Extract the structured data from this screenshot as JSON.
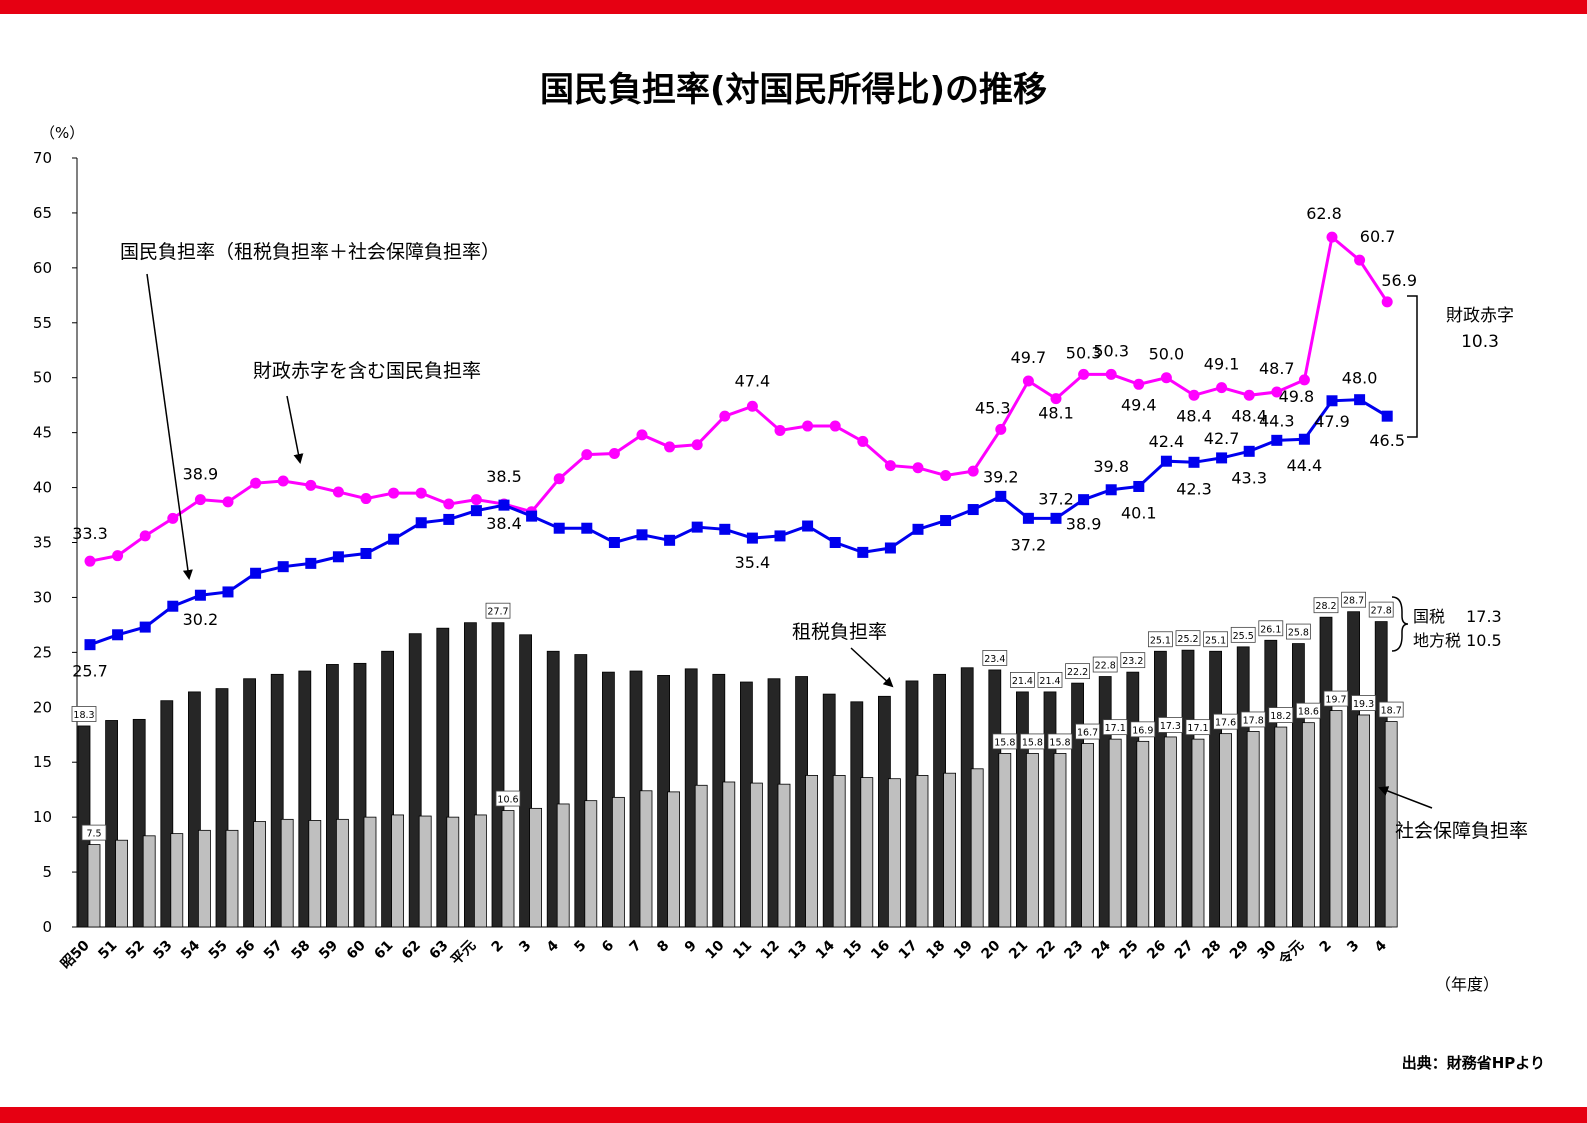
{
  "title": "国民負担率(対国民所得比)の推移",
  "source": "出典：財務省HPより",
  "colors": {
    "accent_bar": "#e60012",
    "tax_bar": "#262626",
    "social_bar": "#bfbfbf",
    "burden_line": "#0000ee",
    "deficit_line": "#ff00ff"
  },
  "chart_data": {
    "type": "bar",
    "y_unit": "（%）",
    "x_unit": "（年度）",
    "ylim": [
      0,
      70
    ],
    "yticks": [
      0,
      5,
      10,
      15,
      20,
      25,
      30,
      35,
      40,
      45,
      50,
      55,
      60,
      65,
      70
    ],
    "categories": [
      "昭50",
      "51",
      "52",
      "53",
      "54",
      "55",
      "56",
      "57",
      "58",
      "59",
      "60",
      "61",
      "62",
      "63",
      "平元",
      "2",
      "3",
      "4",
      "5",
      "6",
      "7",
      "8",
      "9",
      "10",
      "11",
      "12",
      "13",
      "14",
      "15",
      "16",
      "17",
      "18",
      "19",
      "20",
      "21",
      "22",
      "23",
      "24",
      "25",
      "26",
      "27",
      "28",
      "29",
      "30",
      "令元",
      "2",
      "3",
      "4"
    ],
    "series": [
      {
        "name": "租税負担率",
        "kind": "bar",
        "values": [
          18.3,
          18.8,
          18.9,
          20.6,
          21.4,
          21.7,
          22.6,
          23.0,
          23.3,
          23.9,
          24.0,
          25.1,
          26.7,
          27.2,
          27.7,
          27.7,
          26.6,
          25.1,
          24.8,
          23.2,
          23.3,
          22.9,
          23.5,
          23.0,
          22.3,
          22.6,
          22.8,
          21.2,
          20.5,
          21.0,
          22.4,
          23.0,
          23.6,
          23.4,
          21.4,
          21.4,
          22.2,
          22.8,
          23.2,
          25.1,
          25.2,
          25.1,
          25.5,
          26.1,
          25.8,
          28.2,
          28.7,
          27.8
        ]
      },
      {
        "name": "社会保障負担率",
        "kind": "bar",
        "values": [
          7.5,
          7.9,
          8.3,
          8.5,
          8.8,
          8.8,
          9.6,
          9.8,
          9.7,
          9.8,
          10.0,
          10.2,
          10.1,
          10.0,
          10.2,
          10.6,
          10.8,
          11.2,
          11.5,
          11.8,
          12.4,
          12.3,
          12.9,
          13.2,
          13.1,
          13.0,
          13.8,
          13.8,
          13.6,
          13.5,
          13.8,
          14.0,
          14.4,
          15.8,
          15.8,
          15.8,
          16.7,
          17.1,
          16.9,
          17.3,
          17.1,
          17.6,
          17.8,
          18.2,
          18.6,
          19.7,
          19.3,
          18.7
        ]
      },
      {
        "name": "国民負担率（租税負担率＋社会保障負担率）",
        "kind": "line",
        "values": [
          25.7,
          26.6,
          27.3,
          29.2,
          30.2,
          30.5,
          32.2,
          32.8,
          33.1,
          33.7,
          34.0,
          35.3,
          36.8,
          37.1,
          37.9,
          38.4,
          37.4,
          36.3,
          36.3,
          35.0,
          35.7,
          35.2,
          36.4,
          36.2,
          35.4,
          35.6,
          36.5,
          35.0,
          34.1,
          34.5,
          36.2,
          37.0,
          38.0,
          39.2,
          37.2,
          37.2,
          38.9,
          39.8,
          40.1,
          42.4,
          42.3,
          42.7,
          43.3,
          44.3,
          44.4,
          47.9,
          48.0,
          46.5
        ]
      },
      {
        "name": "財政赤字を含む国民負担率",
        "kind": "line",
        "values": [
          33.3,
          33.8,
          35.6,
          37.2,
          38.9,
          38.7,
          40.4,
          40.6,
          40.2,
          39.6,
          39.0,
          39.5,
          39.5,
          38.5,
          38.9,
          38.5,
          37.8,
          40.8,
          43.0,
          43.1,
          44.8,
          43.7,
          43.9,
          46.5,
          47.4,
          45.2,
          45.6,
          45.6,
          44.2,
          42.0,
          41.8,
          41.1,
          41.5,
          45.3,
          49.7,
          48.1,
          50.3,
          50.3,
          49.4,
          50.0,
          48.4,
          49.1,
          48.4,
          48.7,
          49.8,
          62.8,
          60.7,
          56.9
        ]
      }
    ],
    "bar_labels": {
      "tax_idx": [
        0,
        15,
        33,
        34,
        35,
        36,
        37,
        38,
        39,
        40,
        41,
        42,
        43,
        44,
        45,
        46,
        47
      ],
      "social_idx": [
        0,
        15,
        33,
        34,
        35,
        36,
        37,
        38,
        39,
        40,
        41,
        42,
        43,
        44,
        45,
        46,
        47
      ]
    },
    "line_labels": {
      "burden": [
        {
          "i": 0,
          "text": "25.7"
        },
        {
          "i": 4,
          "text": "30.2"
        },
        {
          "i": 15,
          "text": "38.4"
        },
        {
          "i": 24,
          "text": "35.4"
        },
        {
          "i": 33,
          "text": "39.2"
        },
        {
          "i": 34,
          "text": "37.2"
        },
        {
          "i": 35,
          "text": "37.2"
        },
        {
          "i": 36,
          "text": "38.9"
        },
        {
          "i": 37,
          "text": "39.8"
        },
        {
          "i": 38,
          "text": "40.1"
        },
        {
          "i": 39,
          "text": "42.4"
        },
        {
          "i": 40,
          "text": "42.3"
        },
        {
          "i": 41,
          "text": "42.7"
        },
        {
          "i": 42,
          "text": "43.3"
        },
        {
          "i": 43,
          "text": "44.3"
        },
        {
          "i": 44,
          "text": "44.4"
        },
        {
          "i": 45,
          "text": "47.9"
        },
        {
          "i": 46,
          "text": "48.0"
        },
        {
          "i": 47,
          "text": "46.5"
        }
      ],
      "deficit": [
        {
          "i": 0,
          "text": "33.3"
        },
        {
          "i": 4,
          "text": "38.9"
        },
        {
          "i": 15,
          "text": "38.5"
        },
        {
          "i": 24,
          "text": "47.4"
        },
        {
          "i": 33,
          "text": "45.3"
        },
        {
          "i": 34,
          "text": "49.7"
        },
        {
          "i": 35,
          "text": "48.1"
        },
        {
          "i": 36,
          "text": "50.3"
        },
        {
          "i": 37,
          "text": "50.3"
        },
        {
          "i": 38,
          "text": "49.4"
        },
        {
          "i": 39,
          "text": "50.0"
        },
        {
          "i": 40,
          "text": "48.4"
        },
        {
          "i": 41,
          "text": "49.1"
        },
        {
          "i": 42,
          "text": "48.4"
        },
        {
          "i": 43,
          "text": "48.7"
        },
        {
          "i": 44,
          "text": "49.8"
        },
        {
          "i": 45,
          "text": "62.8"
        },
        {
          "i": 46,
          "text": "60.7"
        },
        {
          "i": 47,
          "text": "56.9"
        }
      ]
    },
    "annotations": {
      "burden_label": "国民負担率（租税負担率＋社会保障負担率）",
      "deficit_label": "財政赤字を含む国民負担率",
      "tax_label": "租税負担率",
      "social_label": "社会保障負担率",
      "fiscal_deficit_title": "財政赤字",
      "fiscal_deficit_value": "10.3",
      "national_tax": "国税　 17.3",
      "local_tax": "地方税 10.5"
    }
  }
}
